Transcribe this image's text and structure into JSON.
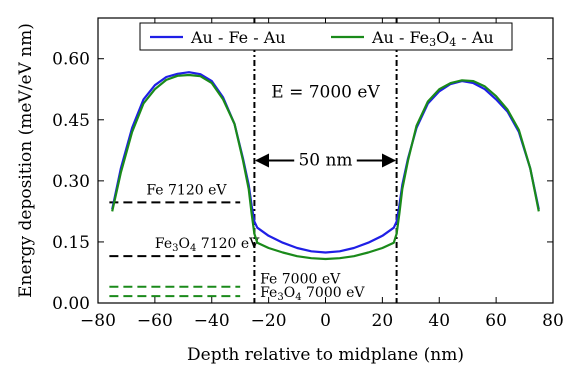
{
  "chart_data": {
    "type": "line",
    "xlabel": "Depth relative to midplane (nm)",
    "ylabel": "Energy deposition (meV/eV nm)",
    "xlim": [
      -80,
      80
    ],
    "ylim": [
      0,
      0.7
    ],
    "xticks": [
      -80,
      -60,
      -40,
      -20,
      0,
      20,
      40,
      60,
      80
    ],
    "xtick_labels": [
      "−80",
      "−60",
      "−40",
      "−20",
      "0",
      "20",
      "40",
      "60",
      "80"
    ],
    "yticks": [
      0.0,
      0.15,
      0.3,
      0.45,
      0.6
    ],
    "ytick_labels": [
      "0.00",
      "0.15",
      "0.30",
      "0.45",
      "0.60"
    ],
    "grid": false,
    "legend_position": "top-center",
    "series": [
      {
        "name": "Au - Fe - Au",
        "color": "#1f1fe6",
        "x": [
          -75,
          -72,
          -68,
          -64,
          -60,
          -56,
          -52,
          -48,
          -44,
          -40,
          -36,
          -32,
          -29,
          -27,
          -26,
          -25,
          -24,
          -20,
          -15,
          -10,
          -5,
          0,
          5,
          10,
          15,
          20,
          24,
          25,
          26,
          27,
          29,
          32,
          36,
          40,
          44,
          48,
          52,
          56,
          60,
          64,
          68,
          72,
          75
        ],
        "y": [
          0.23,
          0.33,
          0.43,
          0.5,
          0.535,
          0.555,
          0.563,
          0.567,
          0.562,
          0.545,
          0.505,
          0.44,
          0.355,
          0.29,
          0.24,
          0.2,
          0.185,
          0.165,
          0.148,
          0.135,
          0.127,
          0.124,
          0.127,
          0.135,
          0.148,
          0.165,
          0.185,
          0.2,
          0.24,
          0.29,
          0.355,
          0.43,
          0.49,
          0.52,
          0.538,
          0.545,
          0.54,
          0.525,
          0.5,
          0.47,
          0.42,
          0.33,
          0.23
        ]
      },
      {
        "name": "Au - Fe₃O₄ - Au",
        "color": "#1a8a1a",
        "x": [
          -75,
          -72,
          -68,
          -64,
          -60,
          -56,
          -52,
          -48,
          -44,
          -40,
          -36,
          -32,
          -29,
          -27,
          -26,
          -25,
          -24,
          -20,
          -15,
          -10,
          -5,
          0,
          5,
          10,
          15,
          20,
          24,
          25,
          26,
          27,
          29,
          32,
          36,
          40,
          44,
          48,
          52,
          56,
          60,
          64,
          68,
          72,
          75
        ],
        "y": [
          0.225,
          0.32,
          0.42,
          0.49,
          0.525,
          0.548,
          0.558,
          0.56,
          0.557,
          0.54,
          0.5,
          0.44,
          0.35,
          0.28,
          0.22,
          0.17,
          0.148,
          0.135,
          0.124,
          0.115,
          0.11,
          0.108,
          0.11,
          0.115,
          0.124,
          0.135,
          0.148,
          0.17,
          0.22,
          0.28,
          0.35,
          0.435,
          0.495,
          0.525,
          0.54,
          0.547,
          0.545,
          0.532,
          0.508,
          0.475,
          0.425,
          0.33,
          0.225
        ]
      }
    ],
    "vlines": [
      {
        "x": -25,
        "style": "dash-dot",
        "color": "#000000"
      },
      {
        "x": 25,
        "style": "dash-dot",
        "color": "#000000"
      }
    ],
    "reference_lines": [
      {
        "label": "Fe 7120 eV",
        "y": 0.247,
        "x_range": [
          -76,
          -30
        ],
        "color": "#000000",
        "style": "dashed"
      },
      {
        "label": "Fe₃O₄ 7120 eV",
        "y": 0.115,
        "x_range": [
          -76,
          -30
        ],
        "color": "#000000",
        "style": "dashed"
      },
      {
        "label": "Fe 7000 eV",
        "y": 0.04,
        "x_range": [
          -76,
          -30
        ],
        "color": "#1a8a1a",
        "style": "dashed"
      },
      {
        "label": "Fe₃O₄ 7000 eV",
        "y": 0.017,
        "x_range": [
          -76,
          -30
        ],
        "color": "#1a8a1a",
        "style": "dashed"
      }
    ],
    "annotations": {
      "energy": "E = 7000 eV",
      "width": "50 nm",
      "arrow_x_range": [
        -25,
        25
      ],
      "arrow_y": 0.35
    }
  }
}
